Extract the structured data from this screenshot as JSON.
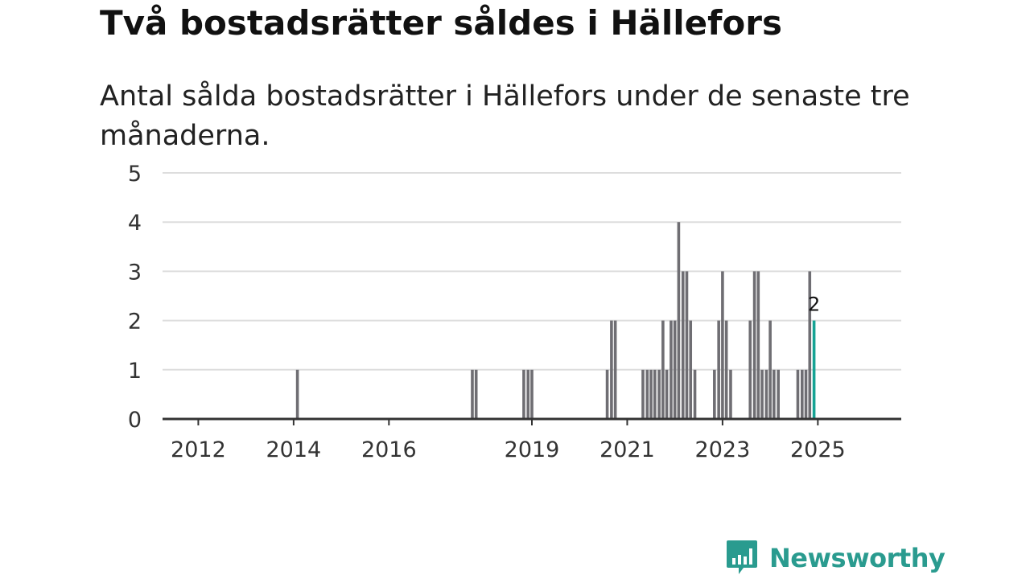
{
  "title": "Två bostadsrätter såldes i Hällefors",
  "subtitle": "Antal sålda bostadsrätter i Hällefors under de senaste tre månaderna.",
  "brand": {
    "name": "Newsworthy",
    "icon": "newsworthy-logo-icon",
    "color": "#2a9b8f"
  },
  "chart_data": {
    "type": "bar",
    "title": "Två bostadsrätter såldes i Hällefors",
    "xlabel": "",
    "ylabel": "",
    "ylim": [
      0,
      5
    ],
    "yticks": [
      0,
      1,
      2,
      3,
      4,
      5
    ],
    "xlim": [
      2011.25,
      2026.75
    ],
    "xticks": [
      2012,
      2014,
      2016,
      2019,
      2021,
      2023,
      2025
    ],
    "bar_color": "#6f6e73",
    "highlight_color": "#16a394",
    "grid": true,
    "values": [
      {
        "x": 2014.08,
        "y": 1
      },
      {
        "x": 2017.75,
        "y": 1
      },
      {
        "x": 2017.83,
        "y": 1
      },
      {
        "x": 2018.83,
        "y": 1
      },
      {
        "x": 2018.92,
        "y": 1
      },
      {
        "x": 2019.0,
        "y": 1
      },
      {
        "x": 2020.58,
        "y": 1
      },
      {
        "x": 2020.67,
        "y": 2
      },
      {
        "x": 2020.75,
        "y": 2
      },
      {
        "x": 2021.33,
        "y": 1
      },
      {
        "x": 2021.42,
        "y": 1
      },
      {
        "x": 2021.5,
        "y": 1
      },
      {
        "x": 2021.58,
        "y": 1
      },
      {
        "x": 2021.67,
        "y": 1
      },
      {
        "x": 2021.75,
        "y": 2
      },
      {
        "x": 2021.83,
        "y": 1
      },
      {
        "x": 2021.92,
        "y": 2
      },
      {
        "x": 2022.0,
        "y": 2
      },
      {
        "x": 2022.08,
        "y": 4
      },
      {
        "x": 2022.17,
        "y": 3
      },
      {
        "x": 2022.25,
        "y": 3
      },
      {
        "x": 2022.33,
        "y": 2
      },
      {
        "x": 2022.42,
        "y": 1
      },
      {
        "x": 2022.83,
        "y": 1
      },
      {
        "x": 2022.92,
        "y": 2
      },
      {
        "x": 2023.0,
        "y": 3
      },
      {
        "x": 2023.08,
        "y": 2
      },
      {
        "x": 2023.17,
        "y": 1
      },
      {
        "x": 2023.58,
        "y": 2
      },
      {
        "x": 2023.67,
        "y": 3
      },
      {
        "x": 2023.75,
        "y": 3
      },
      {
        "x": 2023.83,
        "y": 1
      },
      {
        "x": 2023.92,
        "y": 1
      },
      {
        "x": 2024.0,
        "y": 2
      },
      {
        "x": 2024.08,
        "y": 1
      },
      {
        "x": 2024.17,
        "y": 1
      },
      {
        "x": 2024.58,
        "y": 1
      },
      {
        "x": 2024.67,
        "y": 1
      },
      {
        "x": 2024.75,
        "y": 1
      },
      {
        "x": 2024.83,
        "y": 3
      },
      {
        "x": 2024.92,
        "y": 2,
        "highlight": true,
        "label": "2"
      }
    ]
  }
}
